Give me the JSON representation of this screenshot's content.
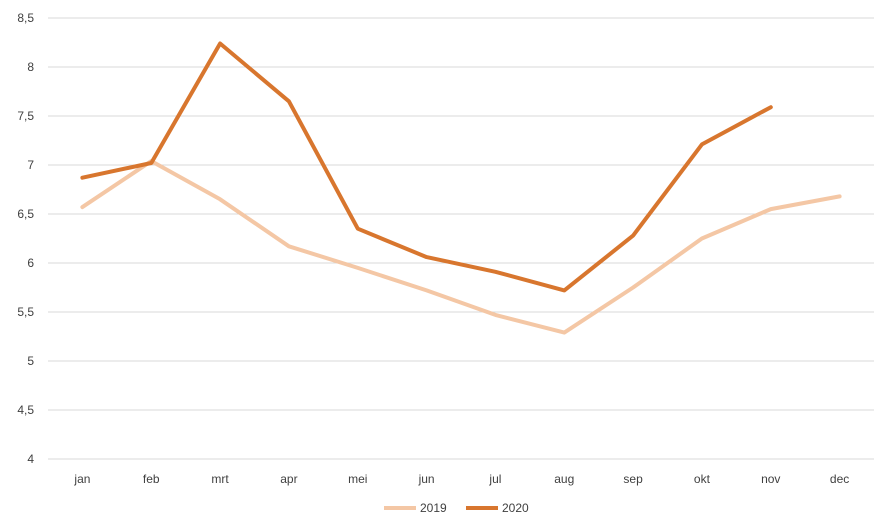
{
  "chart_data": {
    "type": "line",
    "title": "",
    "xlabel": "",
    "ylabel": "",
    "categories": [
      "jan",
      "feb",
      "mrt",
      "apr",
      "mei",
      "jun",
      "jul",
      "aug",
      "sep",
      "okt",
      "nov",
      "dec"
    ],
    "y_ticks": [
      "4",
      "4,5",
      "5",
      "5,5",
      "6",
      "6,5",
      "7",
      "7,5",
      "8",
      "8,5"
    ],
    "ylim": [
      4,
      8.5
    ],
    "grid": true,
    "legend_position": "bottom",
    "series": [
      {
        "name": "2019",
        "color": "#f4c7a5",
        "values": [
          6.57,
          7.04,
          6.65,
          6.17,
          5.95,
          5.72,
          5.47,
          5.29,
          5.75,
          6.25,
          6.55,
          6.68
        ]
      },
      {
        "name": "2020",
        "color": "#d8762e",
        "values": [
          6.87,
          7.02,
          8.24,
          7.65,
          6.35,
          6.06,
          5.91,
          5.72,
          6.28,
          7.21,
          7.59,
          null
        ]
      }
    ]
  }
}
